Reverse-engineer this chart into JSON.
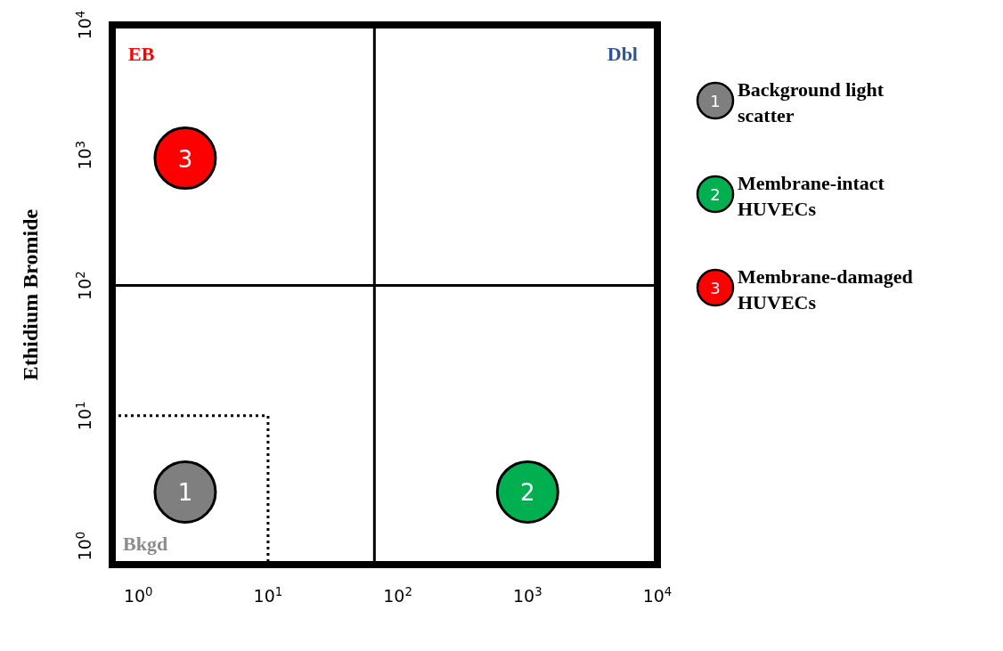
{
  "chart_data": {
    "type": "scatter",
    "ylabel": "Ethidium Bromide",
    "log": "xy",
    "legend": "right",
    "marker": "circle",
    "xlim": [
      0.63,
      10000
    ],
    "ylim": [
      0.72,
      10000
    ],
    "xticks": [
      {
        "value": 1,
        "label": "10$^{0}$"
      },
      {
        "value": 10,
        "label": "10$^{1}$"
      },
      {
        "value": 100,
        "label": "10$^{2}$"
      },
      {
        "value": 1000,
        "label": "10$^{3}$"
      },
      {
        "value": 10000,
        "label": "10$^{4}$"
      }
    ],
    "yticks": [
      {
        "value": 1,
        "label": "10$^{0}$"
      },
      {
        "value": 10,
        "label": "10$^{1}$"
      },
      {
        "value": 100,
        "label": "10$^{2}$"
      },
      {
        "value": 1000,
        "label": "10$^{3}$"
      },
      {
        "value": 10000,
        "label": "10$^{4}$"
      }
    ],
    "series": [
      {
        "name": "Background light scatter",
        "color": "#7f7f7f",
        "x": [
          2.3
        ],
        "values": [
          2.6
        ]
      },
      {
        "name": "Membrane-intact HUVECs",
        "color": "#00b050",
        "x": [
          1000
        ],
        "values": [
          2.6
        ]
      },
      {
        "name": "Membrane-damaged HUVECs",
        "color": "#ff0000",
        "x": [
          2.3
        ],
        "values": [
          950
        ]
      },
      {
        "type": "line",
        "color": "#000000",
        "marker": "none",
        "line_style": "dotted",
        "x": [
          0.63,
          10,
          10
        ],
        "values": [
          10,
          10,
          0.72
        ]
      }
    ],
    "ref_lines": [
      {
        "axis": "x",
        "value": 66,
        "color": "#000000"
      },
      {
        "axis": "y",
        "value": 100,
        "color": "#000000"
      }
    ],
    "annotations": [
      "1",
      "2",
      "3",
      "EB",
      "Dbl",
      "Bkgd"
    ]
  }
}
